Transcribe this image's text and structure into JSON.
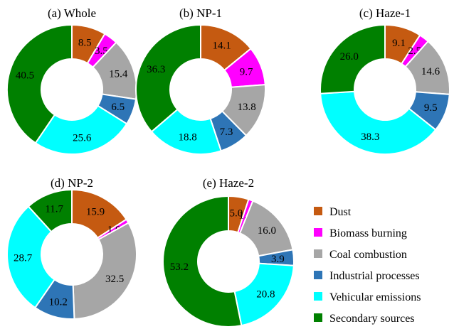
{
  "chart_data": [
    {
      "type": "pie",
      "title": "(a) Whole",
      "categories": [
        "Dust",
        "Biomass burning",
        "Coal combustion",
        "Industrial processes",
        "Vehicular emissions",
        "Secondary sources"
      ],
      "values": [
        8.5,
        3.5,
        15.4,
        6.5,
        25.6,
        40.5
      ]
    },
    {
      "type": "pie",
      "title": "(b) NP-1",
      "categories": [
        "Dust",
        "Biomass burning",
        "Coal combustion",
        "Industrial processes",
        "Vehicular emissions",
        "Secondary sources"
      ],
      "values": [
        14.1,
        9.7,
        13.8,
        7.3,
        18.8,
        36.3
      ]
    },
    {
      "type": "pie",
      "title": "(c) Haze-1",
      "categories": [
        "Dust",
        "Biomass burning",
        "Coal combustion",
        "Industrial processes",
        "Vehicular emissions",
        "Secondary sources"
      ],
      "values": [
        9.1,
        2.5,
        14.6,
        9.5,
        38.3,
        26.0
      ]
    },
    {
      "type": "pie",
      "title": "(d) NP-2",
      "categories": [
        "Dust",
        "Biomass burning",
        "Coal combustion",
        "Industrial processes",
        "Vehicular emissions",
        "Secondary sources"
      ],
      "values": [
        15.9,
        1.0,
        32.5,
        10.2,
        28.7,
        11.7
      ]
    },
    {
      "type": "pie",
      "title": "(e) Haze-2",
      "categories": [
        "Dust",
        "Biomass burning",
        "Coal combustion",
        "Industrial processes",
        "Vehicular emissions",
        "Secondary sources"
      ],
      "values": [
        5.0,
        1.1,
        16.0,
        3.9,
        20.8,
        53.2
      ]
    }
  ],
  "legend": {
    "placement": "bottom-right",
    "items": [
      {
        "label": "Dust",
        "color": "#C55A11"
      },
      {
        "label": "Biomass burning",
        "color": "#FF00FF"
      },
      {
        "label": "Coal combustion",
        "color": "#A6A6A6"
      },
      {
        "label": "Industrial processes",
        "color": "#2E75B6"
      },
      {
        "label": "Vehicular emissions",
        "color": "#00FFFF"
      },
      {
        "label": "Secondary sources",
        "color": "#008000"
      }
    ]
  }
}
